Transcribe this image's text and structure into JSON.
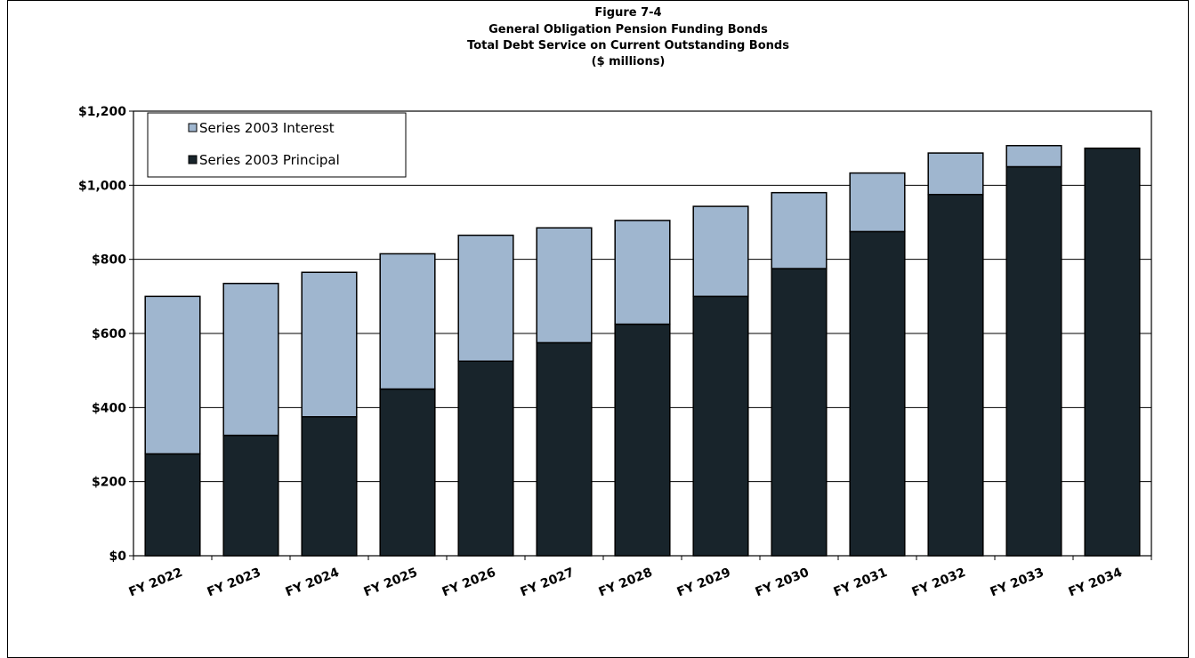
{
  "chart_data": {
    "type": "bar",
    "stacked": true,
    "title": "Figure 7-4",
    "subtitle": [
      "General Obligation Pension Funding Bonds",
      "Total Debt Service on Current Outstanding Bonds",
      "($ millions)"
    ],
    "xlabel": "",
    "ylabel": "",
    "categories": [
      "FY 2022",
      "FY 2023",
      "FY 2024",
      "FY 2025",
      "FY 2026",
      "FY 2027",
      "FY 2028",
      "FY 2029",
      "FY 2030",
      "FY 2031",
      "FY 2032",
      "FY 2033",
      "FY 2034"
    ],
    "series": [
      {
        "name": "Series 2003 Principal",
        "color": "#18242b",
        "values": [
          275,
          325,
          375,
          450,
          525,
          575,
          625,
          700,
          775,
          875,
          975,
          1050,
          1100
        ]
      },
      {
        "name": "Series 2003 Interest",
        "color": "#9fb6cf",
        "values": [
          425,
          410,
          390,
          365,
          340,
          310,
          280,
          243,
          205,
          158,
          112,
          57,
          0
        ]
      }
    ],
    "ylim": [
      0,
      1200
    ],
    "yticks": [
      0,
      200,
      400,
      600,
      800,
      1000,
      1200
    ],
    "ytick_labels": [
      "$0",
      "$200",
      "$400",
      "$600",
      "$800",
      "$1,000",
      "$1,200"
    ],
    "grid": true,
    "legend_position": "top-left",
    "legend_order": [
      "Series 2003 Interest",
      "Series 2003 Principal"
    ]
  }
}
